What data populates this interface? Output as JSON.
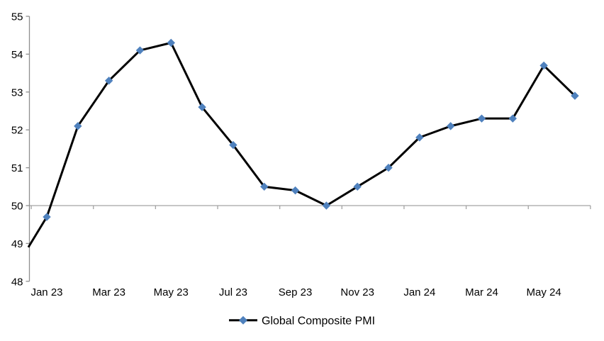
{
  "chart_data": {
    "type": "line",
    "title": "",
    "xlabel": "",
    "ylabel": "",
    "ylim": [
      48,
      55
    ],
    "y_ticks": [
      48,
      49,
      50,
      51,
      52,
      53,
      54,
      55
    ],
    "grid": "single horizontal line at 50 with downward category tick marks",
    "legend_position": "bottom-center",
    "categories": [
      "Jan 23",
      "Feb 23",
      "Mar 23",
      "Apr 23",
      "May 23",
      "Jun 23",
      "Jul 23",
      "Aug 23",
      "Sep 23",
      "Oct 23",
      "Nov 23",
      "Dec 23",
      "Jan 24",
      "Feb 24",
      "Mar 24",
      "Apr 24",
      "May 24",
      "Jun 24"
    ],
    "visible_x_tick_labels": [
      "Jan 23",
      "Mar 23",
      "May 23",
      "Jul 23",
      "Sep 23",
      "Nov 23",
      "Jan 24",
      "Mar 24",
      "May 24"
    ],
    "series": [
      {
        "name": "Global Composite PMI",
        "values": [
          49.7,
          52.1,
          53.3,
          54.1,
          54.3,
          52.6,
          51.6,
          50.5,
          50.4,
          50.0,
          50.5,
          51.0,
          51.8,
          52.1,
          52.3,
          52.3,
          53.7,
          52.9
        ],
        "line_color": "#000000",
        "marker": "diamond",
        "marker_color": "#4F81BD"
      }
    ],
    "lead_in_point": {
      "note": "line enters plot at left axis, no marker",
      "value": 48.9
    },
    "colors": {
      "axis": "#8f8f8f",
      "gridline": "#a3a3a3",
      "text": "#000000"
    }
  }
}
